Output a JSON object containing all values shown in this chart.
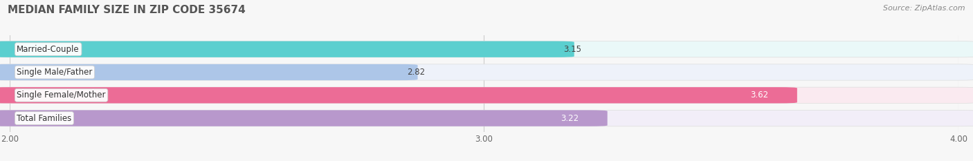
{
  "title": "MEDIAN FAMILY SIZE IN ZIP CODE 35674",
  "source": "Source: ZipAtlas.com",
  "categories": [
    "Married-Couple",
    "Single Male/Father",
    "Single Female/Mother",
    "Total Families"
  ],
  "values": [
    3.15,
    2.82,
    3.62,
    3.22
  ],
  "bar_colors": [
    "#5bcfcf",
    "#adc6e8",
    "#ec6c96",
    "#b898cc"
  ],
  "bar_bg_colors": [
    "#eaf8f8",
    "#eef2fa",
    "#faeaf0",
    "#f2eef8"
  ],
  "label_inside_bar": [
    false,
    false,
    true,
    true
  ],
  "xlim": [
    2.0,
    4.0
  ],
  "xticks": [
    2.0,
    3.0,
    4.0
  ],
  "xtick_labels": [
    "2.00",
    "3.00",
    "4.00"
  ],
  "background_color": "#f7f7f7",
  "title_fontsize": 11,
  "label_fontsize": 8.5,
  "value_fontsize": 8.5,
  "source_fontsize": 8
}
